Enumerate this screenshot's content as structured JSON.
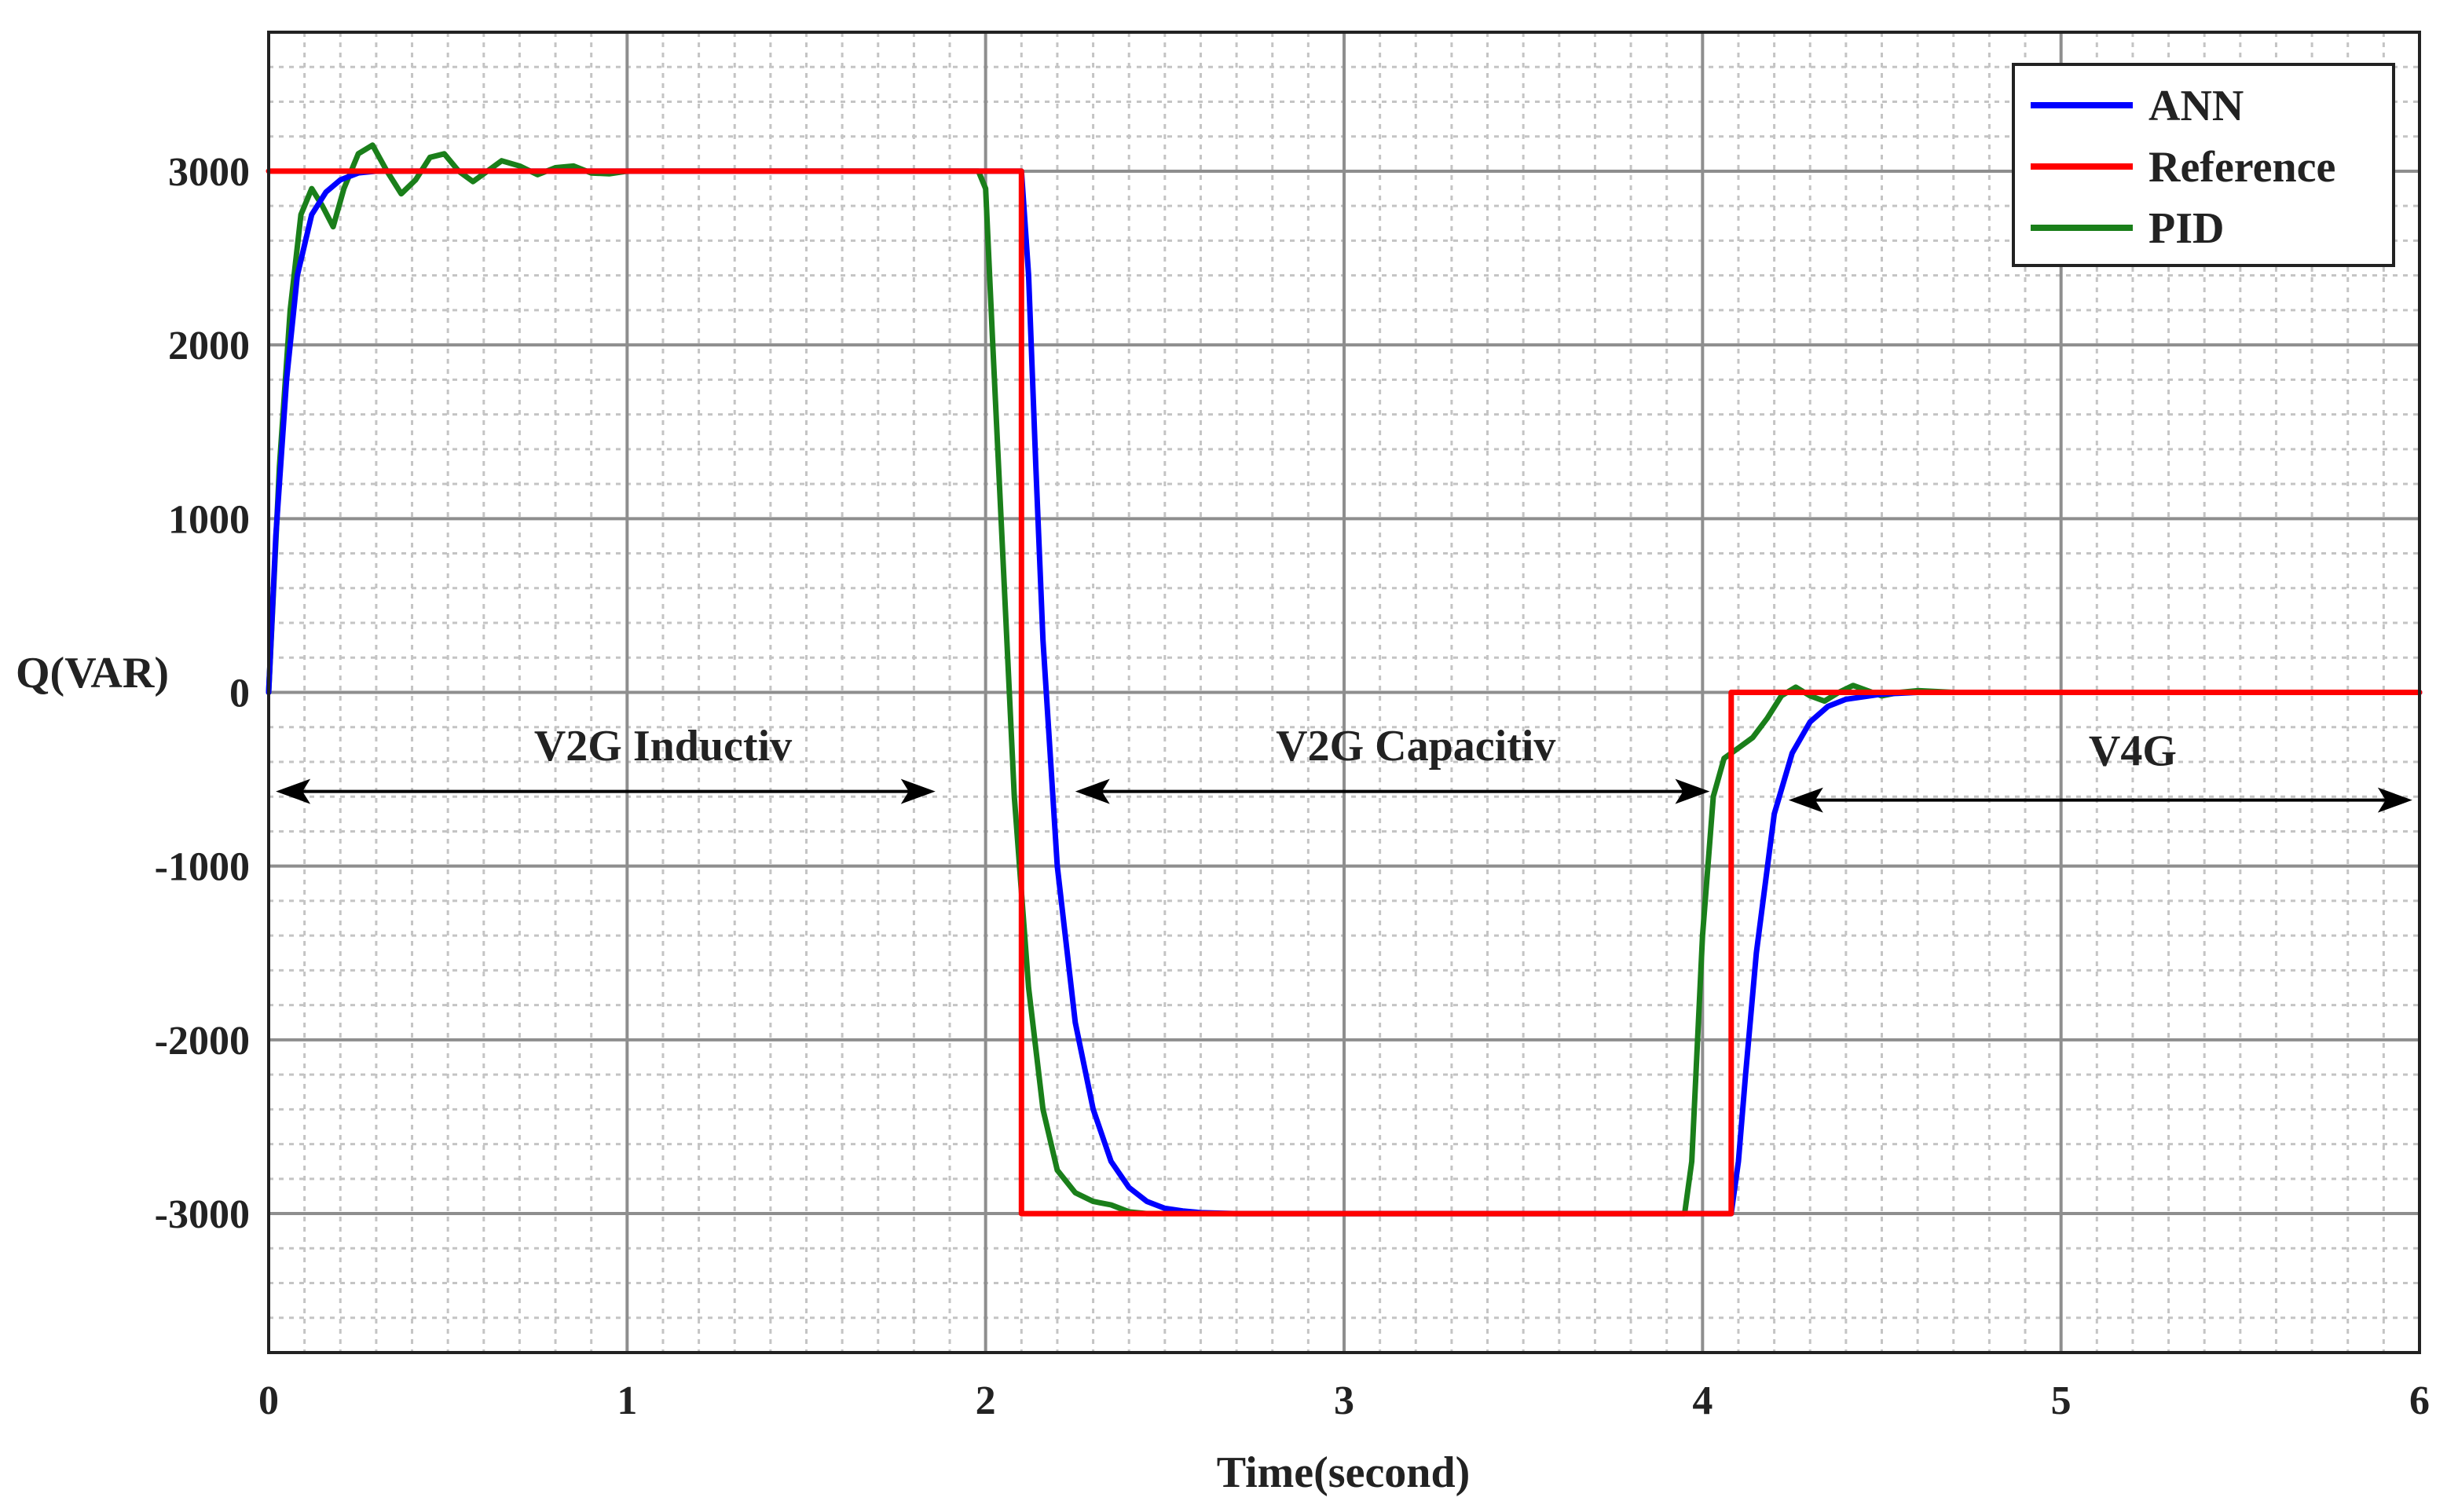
{
  "chart_data": {
    "type": "line",
    "xlabel": "Time(second)",
    "ylabel": "Q(VAR)",
    "xlim": [
      0,
      6
    ],
    "ylim": [
      -3800,
      3800
    ],
    "xticks": [
      0,
      1,
      2,
      3,
      4,
      5,
      6
    ],
    "xtick_labels": [
      "0",
      "1",
      "2",
      "3",
      "4",
      "5",
      "6"
    ],
    "yticks": [
      3000,
      2000,
      1000,
      0,
      -1000,
      -2000,
      -3000
    ],
    "ytick_labels": [
      "3000",
      "2000",
      "1000",
      "0",
      "-1000",
      "-2000",
      "-3000"
    ],
    "grid": true,
    "legend_position": "top-right",
    "series": [
      {
        "name": "ANN",
        "color": "#0000ff",
        "x": [
          0,
          0.02,
          0.05,
          0.08,
          0.12,
          0.16,
          0.2,
          0.25,
          0.3,
          0.4,
          0.5,
          2.1,
          2.12,
          2.14,
          2.16,
          2.2,
          2.25,
          2.3,
          2.35,
          2.4,
          2.45,
          2.5,
          2.55,
          2.6,
          2.7,
          2.8,
          4.08,
          4.1,
          4.12,
          4.15,
          4.2,
          4.25,
          4.3,
          4.35,
          4.4,
          4.5,
          4.6,
          6
        ],
        "values": [
          0,
          900,
          1800,
          2400,
          2750,
          2880,
          2950,
          2990,
          3000,
          3000,
          3000,
          3000,
          2400,
          1300,
          300,
          -1000,
          -1900,
          -2400,
          -2700,
          -2850,
          -2930,
          -2970,
          -2985,
          -2995,
          -3000,
          -3000,
          -3000,
          -2700,
          -2200,
          -1500,
          -700,
          -350,
          -170,
          -80,
          -40,
          -10,
          0,
          0
        ]
      },
      {
        "name": "Reference",
        "color": "#ff0000",
        "x": [
          0,
          2.1,
          2.1,
          4.08,
          4.08,
          6
        ],
        "values": [
          3000,
          3000,
          -3000,
          -3000,
          0,
          0
        ]
      },
      {
        "name": "PID",
        "color": "#1a7f1a",
        "x": [
          0,
          0.03,
          0.06,
          0.09,
          0.12,
          0.15,
          0.18,
          0.21,
          0.25,
          0.29,
          0.33,
          0.37,
          0.41,
          0.45,
          0.49,
          0.53,
          0.57,
          0.61,
          0.65,
          0.7,
          0.75,
          0.8,
          0.85,
          0.9,
          0.95,
          1.0,
          1.2,
          1.98,
          2.0,
          2.02,
          2.05,
          2.08,
          2.12,
          2.16,
          2.2,
          2.25,
          2.3,
          2.35,
          2.4,
          2.45,
          2.5,
          2.6,
          3.95,
          3.97,
          4.0,
          4.03,
          4.06,
          4.1,
          4.14,
          4.18,
          4.22,
          4.26,
          4.3,
          4.34,
          4.38,
          4.42,
          4.46,
          4.5,
          4.55,
          4.6,
          4.7,
          6
        ],
        "values": [
          0,
          1300,
          2200,
          2750,
          2900,
          2800,
          2680,
          2900,
          3100,
          3150,
          3000,
          2870,
          2950,
          3080,
          3100,
          3000,
          2940,
          3000,
          3060,
          3030,
          2980,
          3020,
          3030,
          2990,
          2985,
          3000,
          3000,
          3000,
          2900,
          2000,
          700,
          -600,
          -1700,
          -2400,
          -2750,
          -2880,
          -2930,
          -2950,
          -2990,
          -3000,
          -3000,
          -3000,
          -3000,
          -2700,
          -1400,
          -600,
          -380,
          -320,
          -260,
          -150,
          -20,
          30,
          -20,
          -50,
          0,
          40,
          10,
          -20,
          0,
          10,
          0,
          0
        ]
      }
    ],
    "annotations": [
      {
        "text": "V2G Inductiv",
        "x": 1.1,
        "y": -300,
        "arrow_x": [
          0.02,
          1.86
        ],
        "arrow_y": -570
      },
      {
        "text": "V2G Capacitiv",
        "x": 3.2,
        "y": -300,
        "arrow_x": [
          2.25,
          4.02
        ],
        "arrow_y": -570
      },
      {
        "text": "V4G",
        "x": 5.2,
        "y": -330,
        "arrow_x": [
          4.24,
          5.98
        ],
        "arrow_y": -620
      }
    ]
  }
}
